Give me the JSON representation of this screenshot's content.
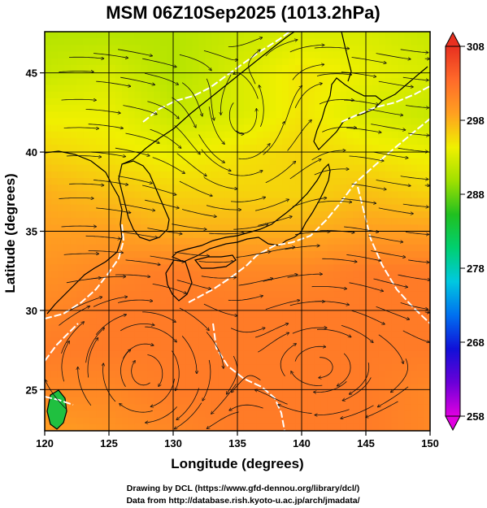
{
  "chart_data": {
    "type": "heatmap",
    "title": "MSM 06Z10Sep2025 (1013.2hPa)",
    "xlabel": "Longitude (degrees)",
    "ylabel": "Latitude  (degrees)",
    "xlim": [
      120,
      150
    ],
    "ylim": [
      22.4,
      47.6
    ],
    "x_ticks": [
      120,
      125,
      130,
      135,
      140,
      145,
      150
    ],
    "y_ticks": [
      25,
      30,
      35,
      40,
      45
    ],
    "grid": true,
    "colorbar": {
      "range": [
        258,
        308
      ],
      "ticks": [
        258,
        268,
        278,
        288,
        298,
        308
      ],
      "colors": [
        "#e000e0",
        "#6a00d8",
        "#1010d8",
        "#0070f0",
        "#00c8e0",
        "#00d070",
        "#20c020",
        "#a0e000",
        "#f0f000",
        "#ffa020",
        "#ff6a2a",
        "#e83020"
      ]
    },
    "overlays": [
      "streamlines",
      "coastlines",
      "white contour lines"
    ],
    "field": {
      "variable": "temperature (K)",
      "grid_lat": [
        47.6,
        45,
        42.5,
        40,
        37.5,
        35,
        32.5,
        30,
        27.5,
        25,
        22.4
      ],
      "grid_lon": [
        120,
        125,
        130,
        135,
        140,
        145,
        150
      ],
      "values": [
        [
          291,
          291,
          291,
          292,
          293,
          293,
          292
        ],
        [
          292,
          293,
          291,
          293,
          295,
          294,
          293
        ],
        [
          294,
          294,
          292,
          293,
          295,
          293,
          292
        ],
        [
          296,
          295,
          294,
          295,
          296,
          295,
          294
        ],
        [
          298,
          297,
          296,
          296,
          296,
          297,
          296
        ],
        [
          299,
          299,
          298,
          298,
          298,
          299,
          299
        ],
        [
          300,
          301,
          302,
          301,
          301,
          302,
          302
        ],
        [
          301,
          302,
          302,
          302,
          302,
          302,
          302
        ],
        [
          302,
          302,
          302,
          302,
          302,
          302,
          302
        ],
        [
          301,
          301,
          302,
          302,
          302,
          302,
          301
        ],
        [
          299,
          300,
          301,
          302,
          302,
          302,
          301
        ]
      ]
    }
  },
  "credits": {
    "line1": "Drawing by DCL (https://www.gfd-dennou.org/library/dcl/)",
    "line2": "Data from http://database.rish.kyoto-u.ac.jp/arch/jmadata/"
  }
}
